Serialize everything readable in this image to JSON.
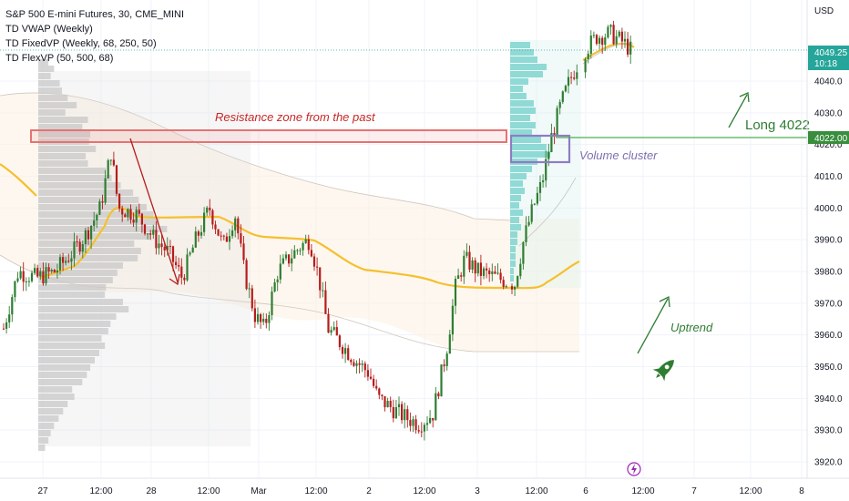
{
  "legend": {
    "symbol": "S&P 500 E-mini Futures, 30, CME_MINI",
    "ind1": "TD VWAP (Weekly)",
    "ind2": "TD FixedVP (Weekly, 68, 250, 50)",
    "ind3": "TD FlexVP (50, 500, 68)"
  },
  "axis": {
    "currency": "USD",
    "price_badge_value": "4049.25",
    "price_badge_time": "10:18",
    "level_badge": "4022.00"
  },
  "annotations": {
    "resistance": "Resistance zone from the past",
    "volume_cluster": "Volume cluster",
    "long": "Long 4022",
    "uptrend": "Uptrend"
  },
  "colors": {
    "up": "#26a69a",
    "down": "#ef5350",
    "candle_body": "#2e7d32",
    "candle_body_down": "#b71c1c",
    "vwap": "#f5c02e",
    "resistance": "#e57373",
    "cluster": "#8e7cc3",
    "arrow_red": "#b71c1c",
    "green_text": "#2e7d32",
    "level_line": "#4caf50",
    "profile_gray": "#c8c8c8",
    "profile_teal": "#7fd3d0"
  },
  "chart_data": {
    "type": "candlestick",
    "y_ticks": [
      4040,
      4030,
      4020,
      4010,
      4000,
      3990,
      3980,
      3970,
      3960,
      3950,
      3940,
      3930,
      3920
    ],
    "y_range": [
      3916.5,
      4061
    ],
    "x_ticks": [
      "27",
      "12:00",
      "28",
      "12:00",
      "Mar",
      "12:00",
      "2",
      "12:00",
      "3",
      "12:00",
      "6",
      "12:00",
      "7",
      "12:00",
      "8"
    ],
    "resistance_zone": [
      4020.5,
      4022.5
    ],
    "long_level": 4022,
    "last_price": 4049.25,
    "closes_approx": [
      3975,
      3984,
      3990,
      3996,
      4015,
      4003,
      3996,
      3984,
      3976,
      3993,
      3999,
      3980,
      3963,
      3986,
      3990,
      3988,
      3972,
      3963,
      3955,
      3943,
      3936,
      3937,
      3952,
      3984,
      3977,
      3975,
      3981,
      3997,
      4018,
      4040,
      4049
    ]
  }
}
